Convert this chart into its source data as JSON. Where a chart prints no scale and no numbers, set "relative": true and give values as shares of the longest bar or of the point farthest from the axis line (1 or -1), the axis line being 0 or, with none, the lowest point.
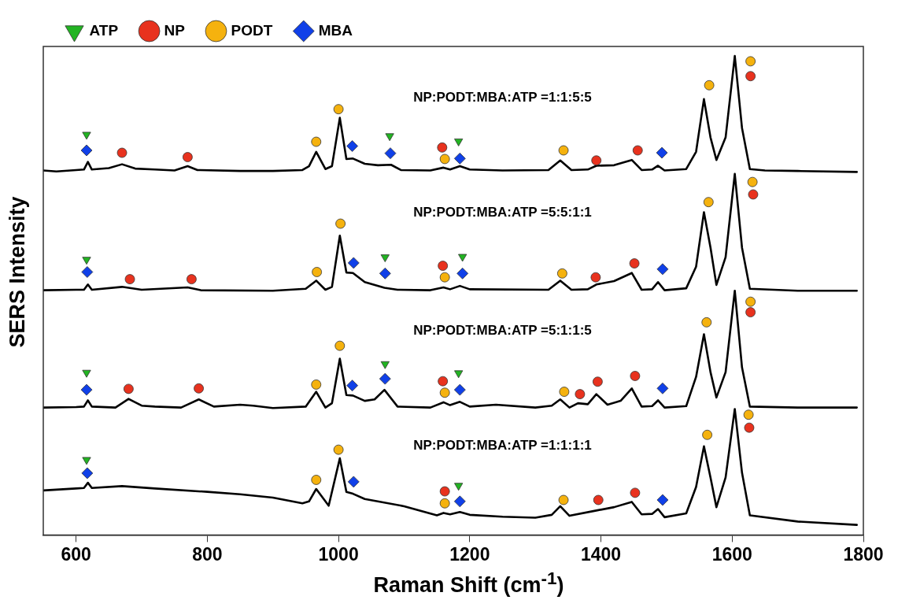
{
  "chart_data": {
    "type": "line",
    "relative": true,
    "xlabel": "Raman Shift (cm$^{-1}$)",
    "ylabel": "SERS Intensity",
    "xlim": [
      550,
      1800
    ],
    "xticks": [
      600,
      800,
      1000,
      1200,
      1400,
      1600,
      1800
    ],
    "tick_labels": "x",
    "legend": "top left",
    "line_style": "solid",
    "annotations": [
      "NP:PODT:MBA:ATP =1:1:5:5",
      "NP:PODT:MBA:ATP =5:5:1:1",
      "NP:PODT:MBA:ATP =5:1:1:5",
      "NP:PODT:MBA:ATP =1:1:1:1"
    ],
    "series": [
      {
        "color": "#000000",
        "marker": "none",
        "x": [
          550,
          570,
          600,
          612,
          618,
          624,
          650,
          670,
          690,
          720,
          750,
          770,
          785,
          850,
          900,
          945,
          955,
          966,
          980,
          990,
          1002,
          1012,
          1022,
          1040,
          1060,
          1080,
          1095,
          1140,
          1160,
          1170,
          1185,
          1200,
          1250,
          1320,
          1338,
          1355,
          1380,
          1393,
          1420,
          1447,
          1462,
          1478,
          1487,
          1497,
          1530,
          1545,
          1557,
          1567,
          1576,
          1590,
          1604,
          1615,
          1627,
          1650,
          1700,
          1790
        ],
        "values": [
          0.761,
          0.759,
          0.762,
          0.763,
          0.779,
          0.763,
          0.766,
          0.774,
          0.765,
          0.763,
          0.761,
          0.77,
          0.762,
          0.76,
          0.76,
          0.762,
          0.77,
          0.8,
          0.764,
          0.77,
          0.871,
          0.785,
          0.786,
          0.775,
          0.772,
          0.773,
          0.762,
          0.761,
          0.767,
          0.763,
          0.77,
          0.763,
          0.761,
          0.762,
          0.782,
          0.762,
          0.763,
          0.771,
          0.772,
          0.783,
          0.762,
          0.763,
          0.771,
          0.761,
          0.764,
          0.8,
          0.91,
          0.83,
          0.783,
          0.83,
          1,
          0.85,
          0.764,
          0.761,
          0.76,
          0.758
        ]
      },
      {
        "color": "#000000",
        "marker": "none",
        "x": [
          550,
          600,
          612,
          618,
          624,
          670,
          700,
          770,
          790,
          900,
          950,
          966,
          980,
          990,
          1002,
          1012,
          1022,
          1040,
          1070,
          1090,
          1140,
          1160,
          1170,
          1185,
          1200,
          1320,
          1338,
          1355,
          1380,
          1393,
          1420,
          1447,
          1462,
          1478,
          1487,
          1497,
          1530,
          1545,
          1557,
          1567,
          1576,
          1590,
          1604,
          1615,
          1627,
          1700,
          1790
        ],
        "values": [
          0.511,
          0.512,
          0.512,
          0.523,
          0.512,
          0.518,
          0.512,
          0.517,
          0.511,
          0.51,
          0.514,
          0.531,
          0.512,
          0.518,
          0.625,
          0.548,
          0.547,
          0.528,
          0.516,
          0.512,
          0.511,
          0.517,
          0.513,
          0.52,
          0.513,
          0.512,
          0.531,
          0.512,
          0.513,
          0.523,
          0.53,
          0.547,
          0.512,
          0.513,
          0.528,
          0.511,
          0.515,
          0.56,
          0.674,
          0.6,
          0.522,
          0.58,
          0.754,
          0.6,
          0.514,
          0.51,
          0.51
        ]
      },
      {
        "color": "#000000",
        "marker": "none",
        "x": [
          550,
          600,
          612,
          618,
          624,
          660,
          680,
          700,
          720,
          760,
          787,
          810,
          850,
          870,
          900,
          950,
          966,
          980,
          990,
          1002,
          1012,
          1022,
          1040,
          1055,
          1070,
          1090,
          1140,
          1160,
          1170,
          1185,
          1200,
          1240,
          1300,
          1325,
          1338,
          1352,
          1365,
          1380,
          1393,
          1410,
          1430,
          1447,
          1462,
          1478,
          1487,
          1497,
          1530,
          1545,
          1557,
          1567,
          1576,
          1590,
          1604,
          1615,
          1627,
          1700,
          1790
        ],
        "values": [
          0.266,
          0.267,
          0.268,
          0.281,
          0.268,
          0.266,
          0.284,
          0.27,
          0.268,
          0.266,
          0.283,
          0.268,
          0.272,
          0.27,
          0.265,
          0.268,
          0.299,
          0.266,
          0.275,
          0.368,
          0.292,
          0.291,
          0.28,
          0.283,
          0.303,
          0.268,
          0.266,
          0.277,
          0.271,
          0.278,
          0.268,
          0.272,
          0.266,
          0.27,
          0.283,
          0.266,
          0.275,
          0.273,
          0.294,
          0.272,
          0.28,
          0.306,
          0.268,
          0.269,
          0.281,
          0.266,
          0.269,
          0.33,
          0.419,
          0.34,
          0.287,
          0.34,
          0.51,
          0.35,
          0.268,
          0.266,
          0.266
        ]
      },
      {
        "color": "#000000",
        "marker": "none",
        "x": [
          550,
          600,
          612,
          618,
          624,
          670,
          720,
          800,
          850,
          900,
          945,
          955,
          966,
          985,
          1002,
          1012,
          1022,
          1040,
          1100,
          1150,
          1160,
          1170,
          1185,
          1200,
          1250,
          1300,
          1325,
          1338,
          1352,
          1393,
          1420,
          1447,
          1462,
          1478,
          1487,
          1497,
          1530,
          1545,
          1557,
          1567,
          1576,
          1590,
          1604,
          1615,
          1627,
          1700,
          1790
        ],
        "values": [
          0.093,
          0.097,
          0.098,
          0.109,
          0.098,
          0.102,
          0.097,
          0.09,
          0.085,
          0.078,
          0.066,
          0.07,
          0.096,
          0.061,
          0.16,
          0.09,
          0.086,
          0.075,
          0.06,
          0.041,
          0.046,
          0.043,
          0.048,
          0.042,
          0.038,
          0.036,
          0.042,
          0.06,
          0.04,
          0.051,
          0.058,
          0.069,
          0.043,
          0.044,
          0.054,
          0.037,
          0.045,
          0.1,
          0.185,
          0.12,
          0.058,
          0.12,
          0.263,
          0.13,
          0.041,
          0.028,
          0.021
        ]
      },
      {
        "type": "scatter",
        "name": "ATP",
        "color": "#22b422",
        "marker": "triangle",
        "x": [
          616,
          1078,
          1183,
          616,
          1071,
          1189,
          616,
          1071,
          1183,
          616,
          1183
        ],
        "values": [
          0.836,
          0.833,
          0.822,
          0.575,
          0.58,
          0.581,
          0.339,
          0.357,
          0.338,
          0.157,
          0.103
        ]
      },
      {
        "type": "scatter",
        "name": "NP",
        "color": "#e8321e",
        "marker": "circle",
        "x": [
          670,
          770,
          1158,
          1393,
          1456,
          1628,
          682,
          776,
          1159,
          1392,
          1451,
          1632,
          680,
          787,
          1159,
          1368,
          1395,
          1452,
          1628,
          1162,
          1396,
          1452,
          1626
        ],
        "values": [
          0.798,
          0.789,
          0.809,
          0.782,
          0.803,
          0.958,
          0.534,
          0.534,
          0.562,
          0.538,
          0.567,
          0.711,
          0.305,
          0.306,
          0.321,
          0.294,
          0.32,
          0.332,
          0.465,
          0.091,
          0.073,
          0.088,
          0.224
        ]
      },
      {
        "type": "scatter",
        "name": "PODT",
        "color": "#f5b20e",
        "marker": "circle",
        "x": [
          966,
          1000,
          1162,
          1343,
          1565,
          1628,
          967,
          1003,
          1162,
          1341,
          1564,
          1631,
          966,
          1002,
          1162,
          1344,
          1561,
          1628,
          966,
          1000,
          1162,
          1343,
          1562,
          1625
        ],
        "values": [
          0.821,
          0.889,
          0.785,
          0.803,
          0.939,
          0.989,
          0.549,
          0.65,
          0.538,
          0.546,
          0.695,
          0.737,
          0.314,
          0.395,
          0.297,
          0.299,
          0.444,
          0.487,
          0.115,
          0.178,
          0.066,
          0.073,
          0.209,
          0.251
        ]
      },
      {
        "type": "scatter",
        "name": "MBA",
        "color": "#1040e8",
        "marker": "diamond",
        "x": [
          616,
          1021,
          1079,
          1185,
          1493,
          617,
          1023,
          1071,
          1189,
          1494,
          616,
          1021,
          1071,
          1185,
          1494,
          617,
          1023,
          1185,
          1494
        ],
        "values": [
          0.803,
          0.812,
          0.797,
          0.786,
          0.798,
          0.549,
          0.568,
          0.546,
          0.546,
          0.555,
          0.303,
          0.312,
          0.326,
          0.303,
          0.306,
          0.129,
          0.111,
          0.07,
          0.073
        ]
      }
    ]
  }
}
